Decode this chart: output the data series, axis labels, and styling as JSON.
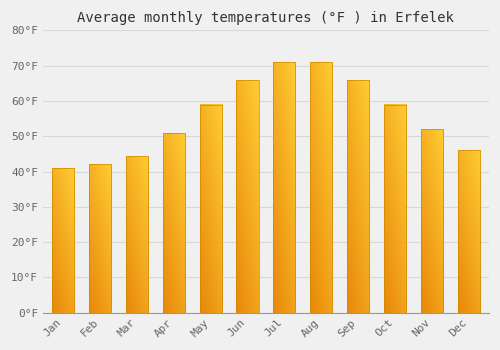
{
  "title": "Average monthly temperatures (°F ) in Erfelek",
  "months": [
    "Jan",
    "Feb",
    "Mar",
    "Apr",
    "May",
    "Jun",
    "Jul",
    "Aug",
    "Sep",
    "Oct",
    "Nov",
    "Dec"
  ],
  "values": [
    41.0,
    42.0,
    44.5,
    51.0,
    59.0,
    66.0,
    71.0,
    71.0,
    66.0,
    59.0,
    52.0,
    46.0
  ],
  "ylim": [
    0,
    80
  ],
  "yticks": [
    0,
    10,
    20,
    30,
    40,
    50,
    60,
    70,
    80
  ],
  "ytick_labels": [
    "0°F",
    "10°F",
    "20°F",
    "30°F",
    "40°F",
    "50°F",
    "60°F",
    "70°F",
    "80°F"
  ],
  "bar_color_left_bottom": "#E8880A",
  "bar_color_right_top": "#FFCC33",
  "bar_color_mid": "#FFB020",
  "background_color": "#f0f0f0",
  "grid_color": "#d8d8d8",
  "title_fontsize": 10,
  "tick_fontsize": 8,
  "bar_width": 0.6,
  "figsize": [
    5.0,
    3.5
  ],
  "dpi": 100
}
